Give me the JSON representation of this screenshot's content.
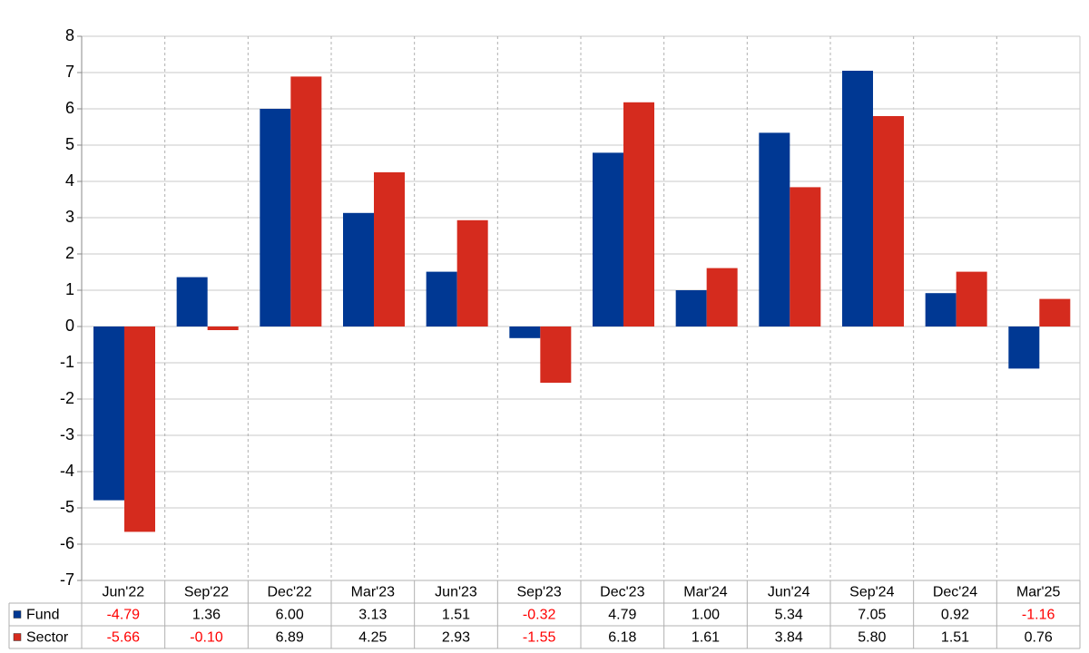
{
  "chart_data": {
    "type": "bar",
    "categories": [
      "Jun'22",
      "Sep'22",
      "Dec'22",
      "Mar'23",
      "Jun'23",
      "Sep'23",
      "Dec'23",
      "Mar'24",
      "Jun'24",
      "Sep'24",
      "Dec'24",
      "Mar'25"
    ],
    "series": [
      {
        "name": "Fund",
        "color": "#003893",
        "values": [
          -4.79,
          1.36,
          6.0,
          3.13,
          1.51,
          -0.32,
          4.79,
          1.0,
          5.34,
          7.05,
          0.92,
          -1.16
        ],
        "value_labels": [
          "-4.79",
          "1.36",
          "6.00",
          "3.13",
          "1.51",
          "-0.32",
          "4.79",
          "1.00",
          "5.34",
          "7.05",
          "0.92",
          "-1.16"
        ]
      },
      {
        "name": "Sector",
        "color": "#d52b1e",
        "values": [
          -5.66,
          -0.1,
          6.89,
          4.25,
          2.93,
          -1.55,
          6.18,
          1.61,
          3.84,
          5.8,
          1.51,
          0.76
        ],
        "value_labels": [
          "-5.66",
          "-0.10",
          "6.89",
          "4.25",
          "2.93",
          "-1.55",
          "6.18",
          "1.61",
          "3.84",
          "5.80",
          "1.51",
          "0.76"
        ]
      }
    ],
    "ylim": [
      -7,
      8
    ],
    "yticks": [
      -7,
      -6,
      -5,
      -4,
      -3,
      -2,
      -1,
      0,
      1,
      2,
      3,
      4,
      5,
      6,
      7,
      8
    ],
    "grid": true,
    "negative_label_color": "#ff0000"
  }
}
